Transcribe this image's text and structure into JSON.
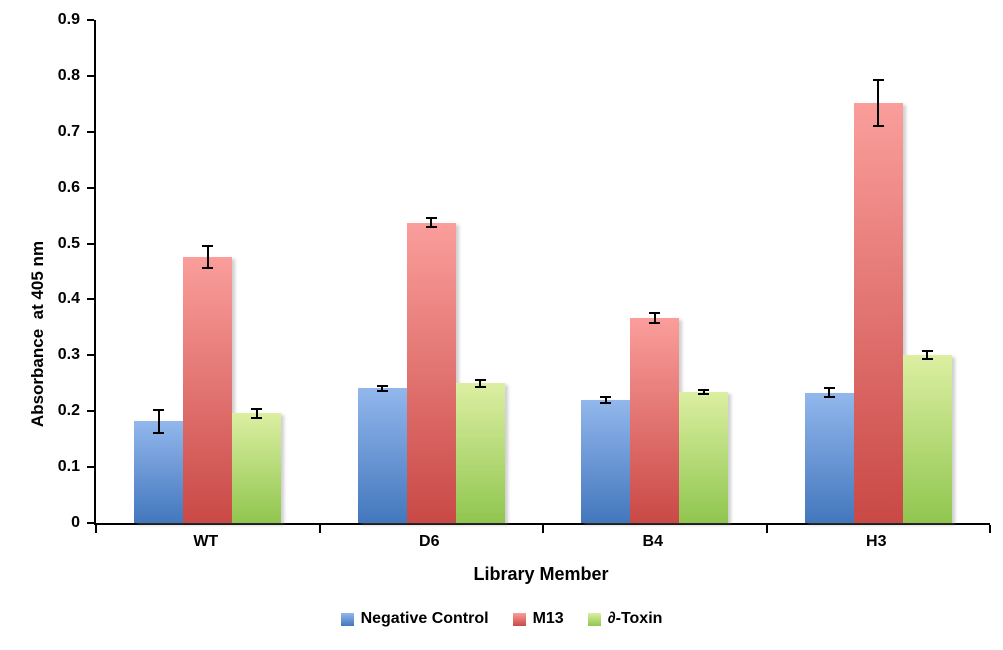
{
  "chart_data": {
    "type": "bar",
    "title": "",
    "xlabel": "Library Member",
    "ylabel": "Absorbance  at 405 nm",
    "categories": [
      "WT",
      "D6",
      "B4",
      "H3"
    ],
    "series": [
      {
        "name": "Negative Control",
        "color_top": "#92B7EC",
        "color_bottom": "#4377BD",
        "values": [
          0.182,
          0.241,
          0.22,
          0.233
        ],
        "errors": [
          0.021,
          0.005,
          0.006,
          0.008
        ]
      },
      {
        "name": "M13",
        "color_top": "#FA9E9B",
        "color_bottom": "#C94946",
        "values": [
          0.476,
          0.537,
          0.366,
          0.751
        ],
        "errors": [
          0.019,
          0.008,
          0.009,
          0.041
        ]
      },
      {
        "name": "∂-Toxin",
        "color_top": "#DCEFA2",
        "color_bottom": "#90C64F",
        "values": [
          0.196,
          0.25,
          0.234,
          0.3
        ],
        "errors": [
          0.008,
          0.006,
          0.004,
          0.007
        ]
      }
    ],
    "ylim": [
      0,
      0.9
    ],
    "ytick_step": 0.1,
    "ytick_labels": [
      "0",
      "0.1",
      "0.2",
      "0.3",
      "0.4",
      "0.5",
      "0.6",
      "0.7",
      "0.8",
      "0.9"
    ],
    "grid": false,
    "legend_position": "bottom",
    "axis_color": "#000000",
    "error_bar_color": "#000000"
  }
}
